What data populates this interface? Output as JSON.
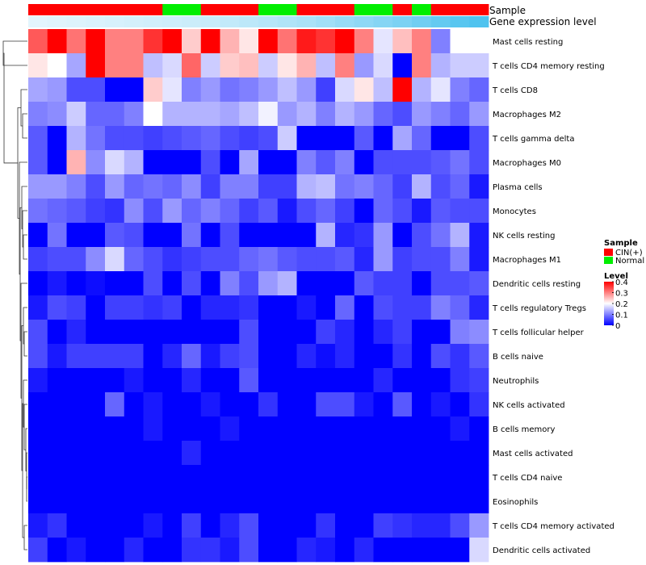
{
  "chart_data": {
    "type": "heatmap",
    "annotation_labels": {
      "sample": "Sample",
      "gene_expression": "Gene expression level"
    },
    "sample_groups": [
      "CIN(+)",
      "CIN(+)",
      "CIN(+)",
      "CIN(+)",
      "CIN(+)",
      "CIN(+)",
      "CIN(+)",
      "Normal",
      "Normal",
      "CIN(+)",
      "CIN(+)",
      "CIN(+)",
      "Normal",
      "Normal",
      "CIN(+)",
      "CIN(+)",
      "CIN(+)",
      "Normal",
      "Normal",
      "CIN(+)",
      "Normal",
      "CIN(+)",
      "CIN(+)",
      "CIN(+)"
    ],
    "gene_expression_level": [
      0.02,
      0.04,
      0.06,
      0.08,
      0.1,
      0.12,
      0.14,
      0.16,
      0.18,
      0.2,
      0.24,
      0.28,
      0.32,
      0.36,
      0.4,
      0.46,
      0.52,
      0.58,
      0.64,
      0.7,
      0.78,
      0.86,
      0.94,
      1.0
    ],
    "rows": [
      "Mast cells resting",
      "T cells CD4 memory resting",
      "T cells CD8",
      "Macrophages M2",
      "T cells gamma delta",
      "Macrophages M0",
      "Plasma cells",
      "Monocytes",
      "NK cells resting",
      "Macrophages M1",
      "Dendritic cells resting",
      "T cells regulatory  Tregs",
      "T cells follicular helper",
      "B cells naive",
      "Neutrophils",
      "NK cells activated",
      "B cells memory",
      "Mast cells activated",
      "T cells CD4 naive",
      "Eosinophils",
      "T cells CD4 memory activated",
      "Dendritic cells activated"
    ],
    "values": [
      [
        0.33,
        0.4,
        0.31,
        0.4,
        0.3,
        0.3,
        0.36,
        0.4,
        0.24,
        0.4,
        0.26,
        0.22,
        0.4,
        0.31,
        0.38,
        0.36,
        0.4,
        0.3,
        0.18,
        0.25,
        0.3,
        0.1,
        0.2,
        0.2
      ],
      [
        0.22,
        0.2,
        0.13,
        0.4,
        0.3,
        0.3,
        0.15,
        0.17,
        0.32,
        0.16,
        0.24,
        0.25,
        0.16,
        0.22,
        0.26,
        0.15,
        0.3,
        0.12,
        0.17,
        0.0,
        0.3,
        0.14,
        0.16,
        0.16
      ],
      [
        0.13,
        0.12,
        0.06,
        0.06,
        0.0,
        0.0,
        0.24,
        0.18,
        0.1,
        0.12,
        0.09,
        0.1,
        0.12,
        0.15,
        0.12,
        0.05,
        0.17,
        0.22,
        0.15,
        0.4,
        0.14,
        0.18,
        0.1,
        0.08
      ],
      [
        0.1,
        0.11,
        0.16,
        0.08,
        0.08,
        0.1,
        0.2,
        0.14,
        0.14,
        0.14,
        0.13,
        0.15,
        0.19,
        0.12,
        0.14,
        0.1,
        0.14,
        0.12,
        0.08,
        0.06,
        0.12,
        0.1,
        0.08,
        0.12
      ],
      [
        0.07,
        0.0,
        0.14,
        0.09,
        0.06,
        0.06,
        0.05,
        0.06,
        0.07,
        0.08,
        0.06,
        0.05,
        0.06,
        0.16,
        0.0,
        0.0,
        0.0,
        0.07,
        0.0,
        0.13,
        0.08,
        0.0,
        0.0,
        0.06
      ],
      [
        0.07,
        0.0,
        0.26,
        0.11,
        0.17,
        0.14,
        0.0,
        0.0,
        0.0,
        0.06,
        0.0,
        0.13,
        0.0,
        0.0,
        0.1,
        0.07,
        0.1,
        0.0,
        0.06,
        0.06,
        0.06,
        0.07,
        0.09,
        0.06
      ],
      [
        0.12,
        0.12,
        0.1,
        0.06,
        0.12,
        0.08,
        0.09,
        0.08,
        0.11,
        0.05,
        0.1,
        0.1,
        0.05,
        0.05,
        0.14,
        0.15,
        0.09,
        0.1,
        0.08,
        0.05,
        0.14,
        0.06,
        0.08,
        0.02
      ],
      [
        0.09,
        0.08,
        0.07,
        0.05,
        0.04,
        0.11,
        0.06,
        0.12,
        0.08,
        0.1,
        0.08,
        0.05,
        0.07,
        0.02,
        0.06,
        0.08,
        0.05,
        0.0,
        0.08,
        0.06,
        0.02,
        0.07,
        0.06,
        0.06
      ],
      [
        0.0,
        0.09,
        0.0,
        0.0,
        0.07,
        0.06,
        0.0,
        0.0,
        0.09,
        0.0,
        0.06,
        0.0,
        0.0,
        0.0,
        0.0,
        0.14,
        0.03,
        0.04,
        0.12,
        0.0,
        0.06,
        0.09,
        0.14,
        0.02
      ],
      [
        0.05,
        0.06,
        0.06,
        0.11,
        0.17,
        0.08,
        0.06,
        0.04,
        0.05,
        0.06,
        0.06,
        0.08,
        0.09,
        0.07,
        0.06,
        0.06,
        0.07,
        0.03,
        0.12,
        0.05,
        0.06,
        0.06,
        0.1,
        0.02
      ],
      [
        0.0,
        0.02,
        0.0,
        0.01,
        0.0,
        0.0,
        0.06,
        0.0,
        0.06,
        0.0,
        0.1,
        0.06,
        0.12,
        0.14,
        0.0,
        0.0,
        0.0,
        0.07,
        0.05,
        0.05,
        0.0,
        0.06,
        0.06,
        0.07
      ],
      [
        0.02,
        0.06,
        0.05,
        0.0,
        0.05,
        0.05,
        0.04,
        0.05,
        0.0,
        0.03,
        0.03,
        0.04,
        0.0,
        0.0,
        0.02,
        0.0,
        0.08,
        0.0,
        0.06,
        0.05,
        0.05,
        0.1,
        0.08,
        0.03
      ],
      [
        0.06,
        0.0,
        0.03,
        0.0,
        0.0,
        0.0,
        0.0,
        0.0,
        0.0,
        0.0,
        0.0,
        0.06,
        0.0,
        0.0,
        0.0,
        0.05,
        0.03,
        0.0,
        0.03,
        0.05,
        0.0,
        0.0,
        0.1,
        0.11
      ],
      [
        0.06,
        0.02,
        0.05,
        0.05,
        0.05,
        0.05,
        0.0,
        0.03,
        0.08,
        0.02,
        0.05,
        0.06,
        0.0,
        0.0,
        0.03,
        0.01,
        0.03,
        0.0,
        0.0,
        0.04,
        0.0,
        0.06,
        0.04,
        0.07
      ],
      [
        0.02,
        0.0,
        0.0,
        0.0,
        0.0,
        0.02,
        0.0,
        0.0,
        0.03,
        0.0,
        0.0,
        0.07,
        0.0,
        0.0,
        0.0,
        0.0,
        0.0,
        0.0,
        0.03,
        0.0,
        0.0,
        0.0,
        0.04,
        0.05
      ],
      [
        0.0,
        0.0,
        0.0,
        0.0,
        0.08,
        0.0,
        0.02,
        0.0,
        0.0,
        0.02,
        0.0,
        0.0,
        0.04,
        0.0,
        0.0,
        0.06,
        0.06,
        0.02,
        0.0,
        0.07,
        0.0,
        0.02,
        0.0,
        0.04
      ],
      [
        0.0,
        0.0,
        0.0,
        0.0,
        0.0,
        0.0,
        0.02,
        0.0,
        0.0,
        0.0,
        0.02,
        0.0,
        0.0,
        0.0,
        0.0,
        0.0,
        0.0,
        0.0,
        0.0,
        0.0,
        0.0,
        0.0,
        0.02,
        0.0
      ],
      [
        0.0,
        0.0,
        0.0,
        0.0,
        0.0,
        0.0,
        0.0,
        0.0,
        0.03,
        0.0,
        0.0,
        0.0,
        0.0,
        0.0,
        0.0,
        0.0,
        0.0,
        0.0,
        0.0,
        0.0,
        0.0,
        0.0,
        0.0,
        0.0
      ],
      [
        0.0,
        0.0,
        0.0,
        0.0,
        0.0,
        0.0,
        0.0,
        0.0,
        0.0,
        0.0,
        0.0,
        0.0,
        0.0,
        0.0,
        0.0,
        0.0,
        0.0,
        0.0,
        0.0,
        0.0,
        0.0,
        0.0,
        0.0,
        0.0
      ],
      [
        0.0,
        0.0,
        0.0,
        0.0,
        0.0,
        0.0,
        0.0,
        0.0,
        0.0,
        0.0,
        0.0,
        0.0,
        0.0,
        0.0,
        0.0,
        0.0,
        0.0,
        0.0,
        0.0,
        0.0,
        0.0,
        0.0,
        0.0,
        0.0
      ],
      [
        0.02,
        0.04,
        0.0,
        0.0,
        0.0,
        0.0,
        0.02,
        0.0,
        0.05,
        0.0,
        0.03,
        0.06,
        0.0,
        0.0,
        0.0,
        0.04,
        0.0,
        0.0,
        0.05,
        0.04,
        0.03,
        0.03,
        0.06,
        0.12
      ],
      [
        0.05,
        0.0,
        0.02,
        0.0,
        0.0,
        0.03,
        0.0,
        0.0,
        0.04,
        0.04,
        0.02,
        0.06,
        0.0,
        0.0,
        0.03,
        0.02,
        0.0,
        0.03,
        0.0,
        0.0,
        0.0,
        0.0,
        0.0,
        0.17
      ]
    ],
    "legend": {
      "sample_title": "Sample",
      "sample_entries": [
        {
          "label": "CIN(+)",
          "color": "#ff0000"
        },
        {
          "label": "Normal",
          "color": "#00ee00"
        }
      ],
      "level_title": "Level",
      "level_ticks": [
        "0.4",
        "0.3",
        "0.2",
        "0.1",
        "0"
      ],
      "level_range": [
        0,
        0.4
      ]
    },
    "colors": {
      "low": "#0000ff",
      "mid": "#ffffff",
      "high": "#ff0000",
      "cin": "#ff0000",
      "normal": "#00ee00",
      "expr_light": "#e6f6fd",
      "expr_dark": "#4fc3ef"
    }
  }
}
